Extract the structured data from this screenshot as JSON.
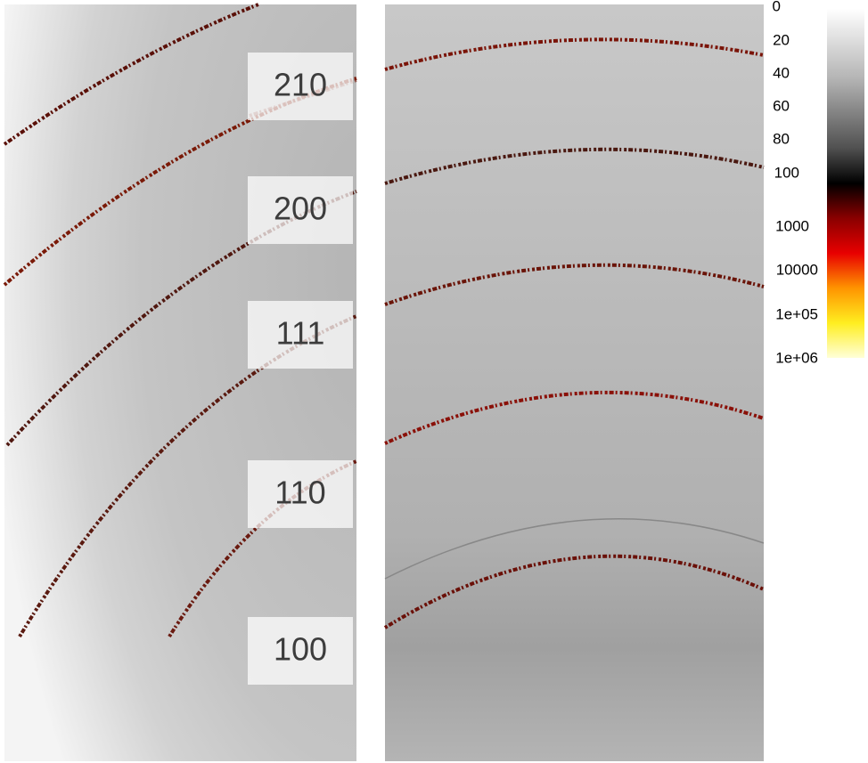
{
  "reflections": [
    "210",
    "200",
    "111",
    "110",
    "100"
  ],
  "colorbar": {
    "ticks": [
      "0",
      "20",
      "40",
      "60",
      "80",
      "100",
      "1000",
      "10000",
      "1e+05",
      "1e+06"
    ]
  }
}
